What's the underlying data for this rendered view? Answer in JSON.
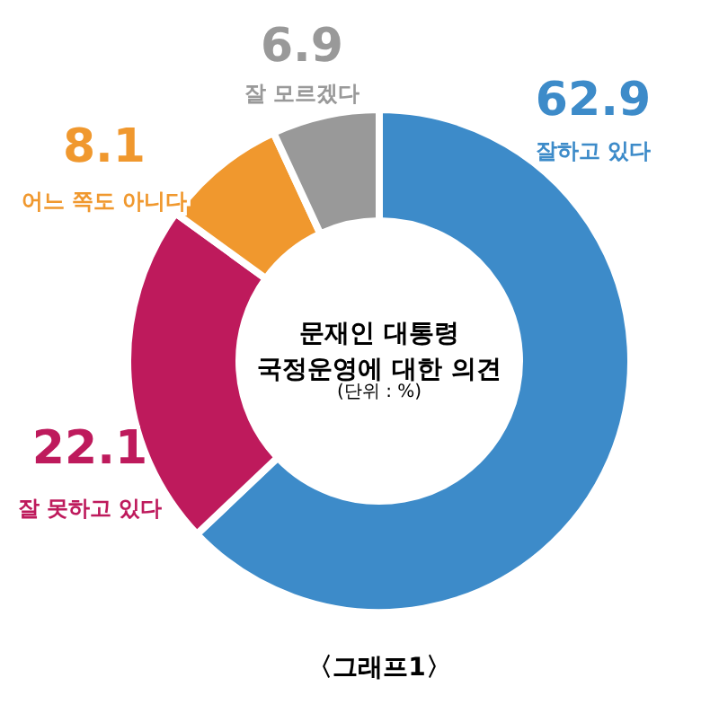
{
  "chart_data": {
    "type": "donut",
    "title": "문재인 대통령\n국정운영에 대한 의견",
    "subtitle": "(단위 : %)",
    "categories": [
      "잘하고 있다",
      "잘 못하고 있다",
      "어느 쪽도 아니다",
      "잘 모르겠다"
    ],
    "values": [
      62.9,
      22.1,
      8.1,
      6.9
    ],
    "colors": [
      "#3d8bc9",
      "#be1a5c",
      "#f0982e",
      "#999999"
    ],
    "data_labels": true,
    "annotations": [
      "〈그래프1〉"
    ]
  }
}
